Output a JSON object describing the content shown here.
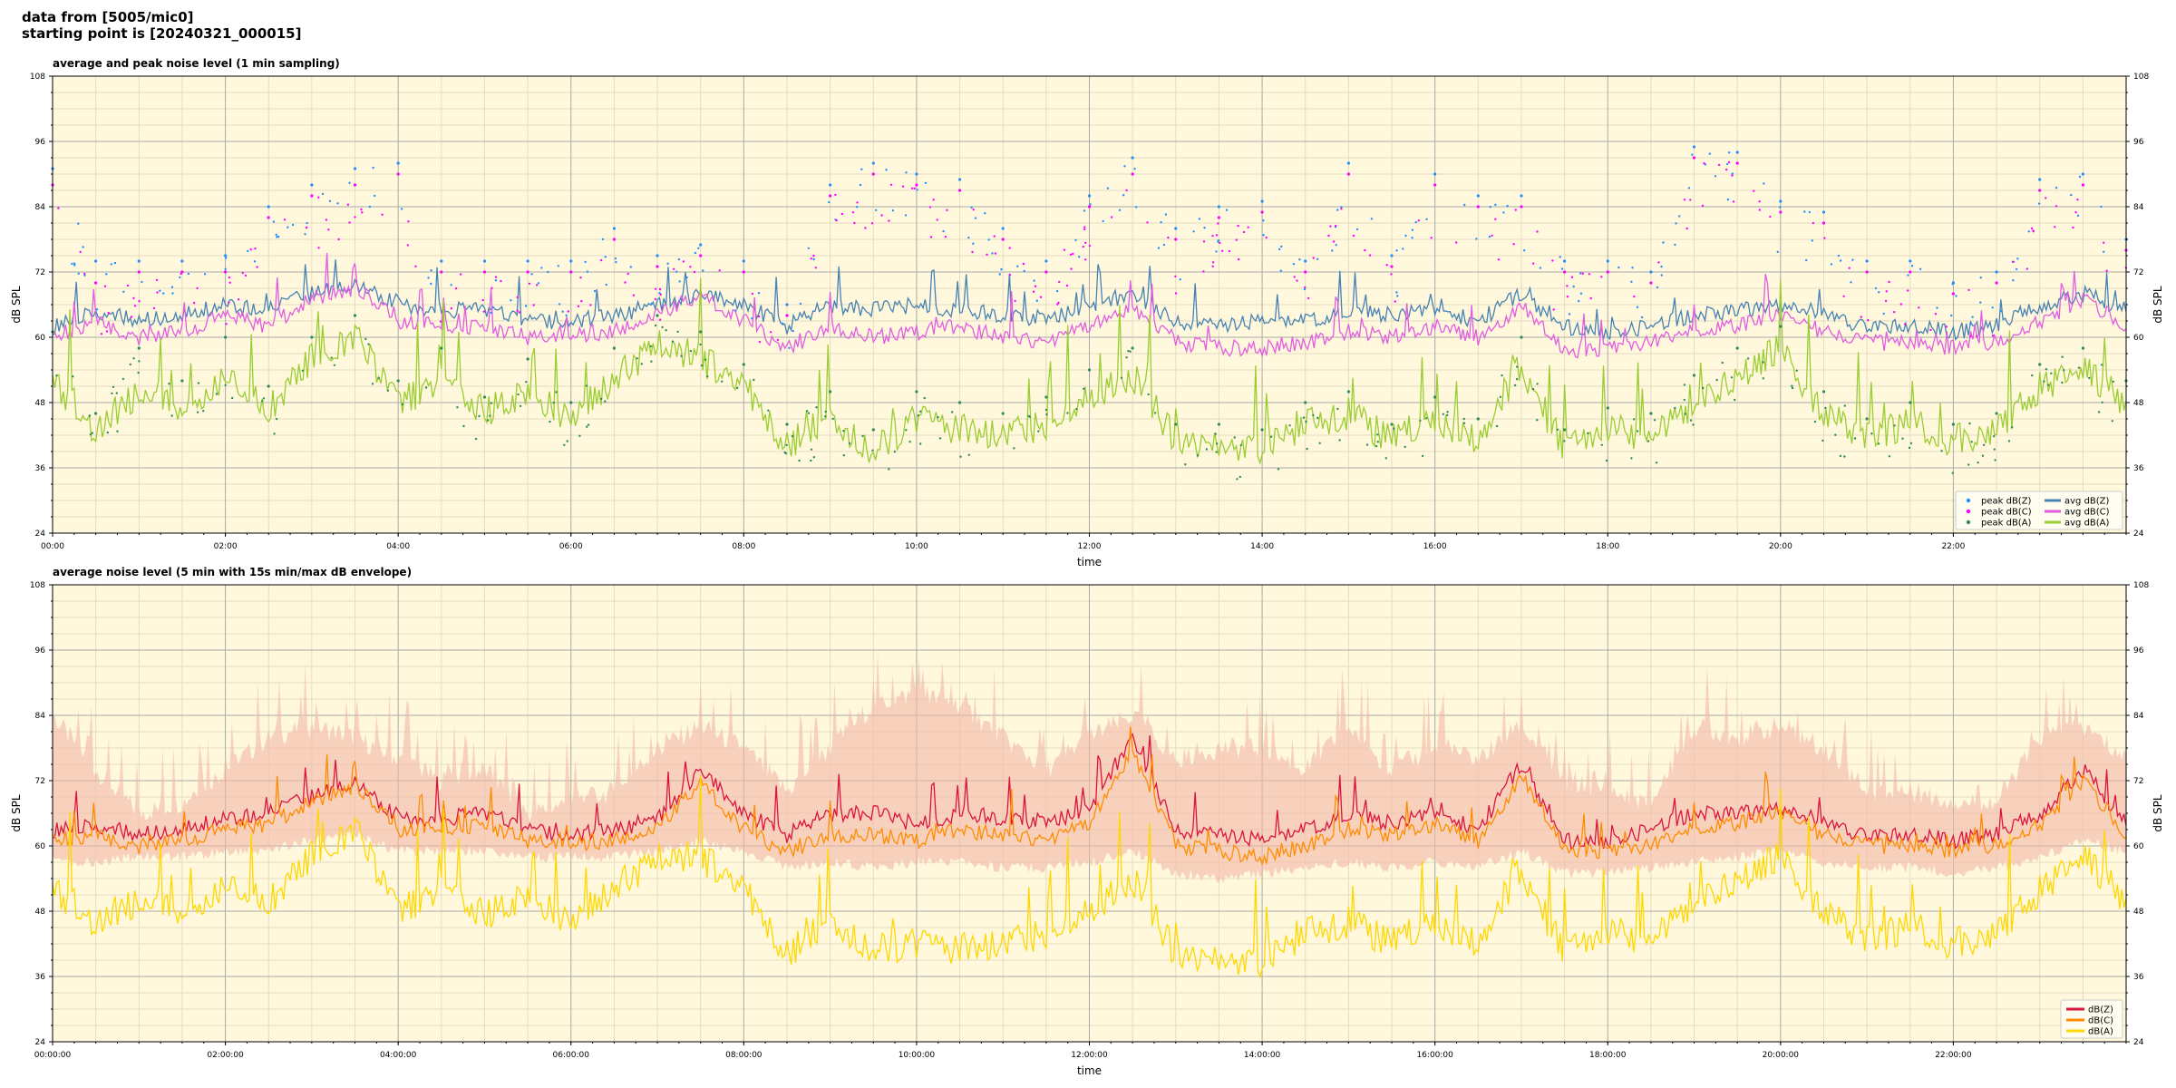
{
  "header": {
    "line1": "data from [5005/mic0]",
    "line2": "starting point is [20240321_000015]"
  },
  "colors": {
    "background": "#fff8dc",
    "major_grid": "#a9a9a9",
    "minor_grid": "#e6dcc0",
    "z": "#4682b4",
    "c": "#e25ce2",
    "a": "#9acd32",
    "z_top": "#dc143c",
    "c_top": "#ff8c00",
    "a_top": "#ffd700",
    "envelope": "#f4b8a8",
    "peak_z": "#1e90ff",
    "peak_c": "#ff00ff",
    "peak_a": "#2e8b57"
  },
  "chart_data": [
    {
      "type": "line",
      "title": "average and peak noise level (1 min sampling)",
      "xlabel": "time",
      "ylabel": "dB SPL",
      "ylim": [
        24,
        108
      ],
      "xlim_hours": [
        0,
        24
      ],
      "grid": true,
      "legend_placement": "bottom-right",
      "x_tick_labels": [
        "00:00",
        "02:00",
        "04:00",
        "06:00",
        "08:00",
        "10:00",
        "12:00",
        "14:00",
        "16:00",
        "18:00",
        "20:00",
        "22:00"
      ],
      "y_ticks": [
        24,
        36,
        48,
        60,
        72,
        84,
        96,
        108
      ],
      "x_hours": [
        0,
        0.5,
        1,
        1.5,
        2,
        2.5,
        3,
        3.5,
        4,
        4.5,
        5,
        5.5,
        6,
        6.5,
        7,
        7.5,
        8,
        8.5,
        9,
        9.5,
        10,
        10.5,
        11,
        11.5,
        12,
        12.5,
        13,
        13.5,
        14,
        14.5,
        15,
        15.5,
        16,
        16.5,
        17,
        17.5,
        18,
        18.5,
        19,
        19.5,
        20,
        20.5,
        21,
        21.5,
        22,
        22.5,
        23,
        23.5,
        24
      ],
      "series": [
        {
          "name": "avg dB(Z)",
          "kind": "line",
          "colorKey": "z",
          "values": [
            62,
            65,
            63,
            64,
            66,
            65,
            68,
            70,
            66,
            65,
            65,
            63,
            63,
            64,
            66,
            68,
            66,
            62,
            66,
            65,
            66,
            65,
            64,
            63,
            66,
            68,
            63,
            62,
            63,
            63,
            65,
            64,
            65,
            63,
            68,
            62,
            61,
            62,
            64,
            65,
            66,
            64,
            62,
            62,
            61,
            62,
            66,
            68,
            65
          ]
        },
        {
          "name": "avg dB(C)",
          "kind": "line",
          "colorKey": "c",
          "values": [
            60,
            63,
            60,
            61,
            64,
            62,
            67,
            69,
            63,
            62,
            62,
            60,
            60,
            61,
            64,
            68,
            63,
            58,
            62,
            60,
            61,
            62,
            60,
            59,
            62,
            65,
            59,
            58,
            58,
            59,
            61,
            60,
            62,
            60,
            66,
            57,
            58,
            59,
            61,
            62,
            64,
            61,
            59,
            59,
            58,
            59,
            63,
            67,
            62
          ]
        },
        {
          "name": "avg dB(A)",
          "kind": "line",
          "colorKey": "a",
          "values": [
            52,
            43,
            50,
            47,
            53,
            47,
            56,
            60,
            48,
            52,
            46,
            50,
            45,
            52,
            59,
            56,
            51,
            40,
            45,
            39,
            45,
            43,
            42,
            44,
            49,
            53,
            41,
            40,
            39,
            44,
            46,
            41,
            45,
            41,
            55,
            39,
            43,
            42,
            48,
            53,
            58,
            46,
            42,
            44,
            41,
            43,
            51,
            54,
            48
          ]
        },
        {
          "name": "peak dB(Z)",
          "kind": "scatter",
          "colorKey": "peak_z",
          "values": [
            91,
            74,
            74,
            74,
            75,
            84,
            88,
            91,
            92,
            74,
            74,
            74,
            74,
            80,
            75,
            77,
            74,
            66,
            88,
            92,
            90,
            89,
            80,
            74,
            86,
            93,
            80,
            84,
            85,
            74,
            92,
            75,
            90,
            86,
            86,
            74,
            74,
            72,
            95,
            94,
            85,
            83,
            74,
            74,
            70,
            72,
            89,
            90,
            78
          ]
        },
        {
          "name": "peak dB(C)",
          "kind": "scatter",
          "colorKey": "peak_c",
          "values": [
            88,
            70,
            72,
            72,
            72,
            82,
            86,
            88,
            90,
            72,
            72,
            72,
            72,
            78,
            73,
            75,
            72,
            64,
            86,
            90,
            88,
            87,
            78,
            72,
            84,
            90,
            78,
            82,
            83,
            72,
            90,
            73,
            88,
            84,
            84,
            72,
            72,
            70,
            93,
            92,
            83,
            81,
            72,
            72,
            68,
            70,
            87,
            88,
            76
          ]
        },
        {
          "name": "peak dB(A)",
          "kind": "scatter",
          "colorKey": "peak_a",
          "values": [
            61,
            46,
            58,
            52,
            60,
            51,
            60,
            64,
            52,
            58,
            49,
            56,
            48,
            58,
            64,
            61,
            55,
            44,
            50,
            43,
            50,
            48,
            46,
            49,
            54,
            58,
            44,
            44,
            43,
            48,
            50,
            44,
            49,
            45,
            60,
            43,
            47,
            46,
            53,
            58,
            62,
            50,
            45,
            48,
            44,
            46,
            55,
            58,
            52
          ]
        }
      ]
    },
    {
      "type": "area",
      "title": "average noise level (5 min with 15s min/max dB envelope)",
      "xlabel": "time",
      "ylabel": "dB SPL",
      "ylim": [
        24,
        108
      ],
      "xlim_hours": [
        0,
        24
      ],
      "grid": true,
      "legend_placement": "bottom-right",
      "x_tick_labels": [
        "00:00:00",
        "02:00:00",
        "04:00:00",
        "06:00:00",
        "08:00:00",
        "10:00:00",
        "12:00:00",
        "14:00:00",
        "16:00:00",
        "18:00:00",
        "20:00:00",
        "22:00:00"
      ],
      "y_ticks": [
        24,
        36,
        48,
        60,
        72,
        84,
        96,
        108
      ],
      "x_hours": [
        0,
        0.5,
        1,
        1.5,
        2,
        2.5,
        3,
        3.5,
        4,
        4.5,
        5,
        5.5,
        6,
        6.5,
        7,
        7.5,
        8,
        8.5,
        9,
        9.5,
        10,
        10.5,
        11,
        11.5,
        12,
        12.5,
        13,
        13.5,
        14,
        14.5,
        15,
        15.5,
        16,
        16.5,
        17,
        17.5,
        18,
        18.5,
        19,
        19.5,
        20,
        20.5,
        21,
        21.5,
        22,
        22.5,
        23,
        23.5,
        24
      ],
      "envelope": {
        "max": [
          88,
          78,
          70,
          72,
          78,
          84,
          86,
          84,
          80,
          76,
          78,
          70,
          72,
          74,
          82,
          86,
          82,
          74,
          82,
          90,
          92,
          90,
          84,
          78,
          84,
          88,
          80,
          82,
          82,
          78,
          86,
          78,
          82,
          80,
          86,
          76,
          74,
          72,
          86,
          84,
          86,
          82,
          74,
          74,
          72,
          72,
          84,
          86,
          80
        ],
        "min": [
          58,
          58,
          59,
          59,
          60,
          60,
          62,
          63,
          60,
          60,
          60,
          59,
          59,
          59,
          60,
          62,
          60,
          57,
          58,
          57,
          58,
          58,
          57,
          57,
          58,
          60,
          56,
          55,
          56,
          57,
          58,
          57,
          58,
          57,
          60,
          56,
          56,
          57,
          58,
          59,
          60,
          58,
          57,
          57,
          56,
          57,
          59,
          62,
          60
        ]
      },
      "series": [
        {
          "name": "dB(Z)",
          "colorKey": "z_top",
          "values": [
            63,
            64,
            62,
            63,
            65,
            66,
            69,
            72,
            65,
            65,
            66,
            63,
            62,
            63,
            65,
            74,
            66,
            62,
            66,
            66,
            64,
            66,
            65,
            64,
            67,
            80,
            63,
            62,
            61,
            63,
            66,
            64,
            66,
            63,
            75,
            61,
            61,
            63,
            66,
            66,
            67,
            64,
            62,
            62,
            61,
            62,
            66,
            74,
            64
          ]
        },
        {
          "name": "dB(C)",
          "colorKey": "c_top",
          "values": [
            61,
            62,
            60,
            61,
            63,
            64,
            68,
            71,
            63,
            63,
            64,
            61,
            60,
            61,
            63,
            72,
            63,
            59,
            62,
            62,
            61,
            63,
            62,
            61,
            64,
            77,
            60,
            59,
            58,
            60,
            63,
            62,
            64,
            61,
            73,
            59,
            59,
            60,
            63,
            64,
            66,
            62,
            60,
            60,
            59,
            60,
            64,
            72,
            62
          ]
        },
        {
          "name": "dB(A)",
          "colorKey": "a_top",
          "values": [
            52,
            46,
            50,
            48,
            53,
            50,
            58,
            63,
            48,
            52,
            47,
            51,
            46,
            52,
            58,
            58,
            52,
            40,
            46,
            41,
            42,
            41,
            42,
            44,
            48,
            54,
            40,
            39,
            38,
            44,
            46,
            42,
            46,
            42,
            56,
            40,
            44,
            43,
            50,
            54,
            58,
            48,
            43,
            45,
            42,
            44,
            52,
            58,
            50
          ]
        }
      ]
    }
  ]
}
